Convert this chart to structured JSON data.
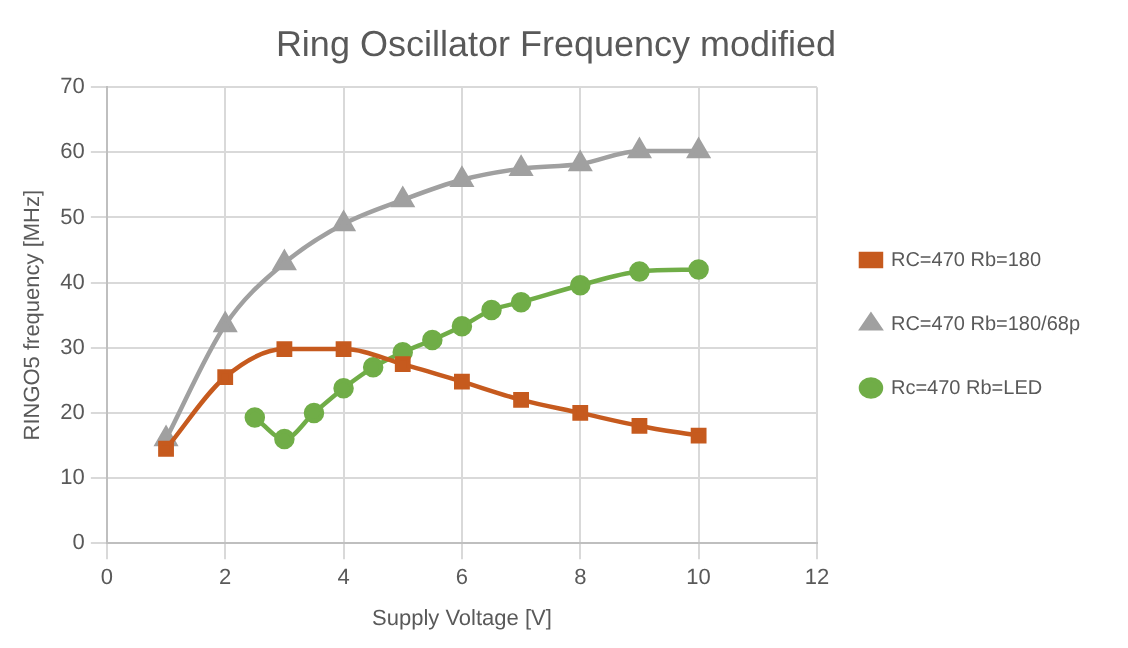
{
  "chart_data": {
    "type": "line",
    "title": "Ring Oscillator Frequency modified",
    "xlabel": "Supply Voltage [V]",
    "ylabel": "RINGO5 frequency [MHz]",
    "series": [
      {
        "name": "RC=470 Rb=180",
        "color": "#c65a1e",
        "marker": "square",
        "x": [
          1,
          2,
          3,
          4,
          5,
          6,
          7,
          8,
          9,
          10
        ],
        "values": [
          14.5,
          25.5,
          29.8,
          29.8,
          27.5,
          24.8,
          22,
          20,
          18,
          16.5
        ]
      },
      {
        "name": "RC=470 Rb=180/68p",
        "color": "#a0a0a0",
        "marker": "triangle",
        "x": [
          1,
          2,
          3,
          4,
          5,
          6,
          7,
          8,
          9,
          10
        ],
        "values": [
          16,
          33.5,
          43,
          49,
          52.7,
          55.8,
          57.5,
          58.2,
          60.2,
          60.2
        ]
      },
      {
        "name": "Rc=470 Rb=LED",
        "color": "#70ad47",
        "marker": "circle",
        "x": [
          2.5,
          3,
          3.5,
          4,
          4.5,
          5,
          5.5,
          6,
          6.5,
          7,
          8,
          9,
          10
        ],
        "values": [
          19.3,
          16,
          20,
          23.8,
          27,
          29.3,
          31.2,
          33.3,
          35.8,
          37,
          39.6,
          41.7,
          42
        ]
      }
    ],
    "xlim": [
      0,
      12
    ],
    "xticks": [
      0,
      2,
      4,
      6,
      8,
      10,
      12
    ],
    "ylim": [
      0,
      70
    ],
    "yticks": [
      0,
      10,
      20,
      30,
      40,
      50,
      60,
      70
    ],
    "grid": true,
    "legend": "right",
    "line_style": "solid"
  }
}
